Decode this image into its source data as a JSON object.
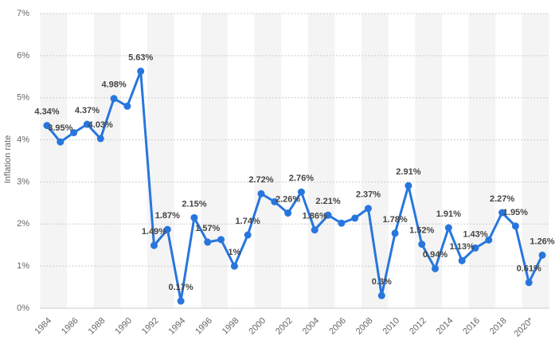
{
  "chart_data": {
    "type": "line",
    "y_label": "Inflation rate",
    "categories": [
      "1984",
      null,
      "1986",
      null,
      "1988",
      null,
      "1990",
      null,
      "1992",
      null,
      "1994",
      null,
      "1996",
      null,
      "1998",
      null,
      "2000",
      null,
      "2002",
      null,
      "2004",
      null,
      "2006",
      null,
      "2008",
      null,
      "2010",
      null,
      "2012",
      null,
      "2014",
      null,
      "2016",
      null,
      "2018",
      null,
      "2020*",
      null
    ],
    "series": [
      {
        "name": "Inflation rate",
        "color": "#2876dd",
        "values": [
          4.34,
          3.95,
          4.17,
          4.37,
          4.03,
          4.98,
          4.8,
          5.63,
          1.49,
          1.87,
          0.17,
          2.15,
          1.57,
          1.63,
          1,
          1.74,
          2.72,
          2.53,
          2.26,
          2.76,
          1.86,
          2.21,
          2.02,
          2.14,
          2.37,
          0.3,
          1.78,
          2.91,
          1.52,
          0.94,
          1.91,
          1.13,
          1.43,
          1.62,
          2.27,
          1.95,
          0.61,
          1.26
        ],
        "value_labels": [
          "4.34%",
          "3.95%",
          null,
          "4.37%",
          "4.03%",
          "4.98%",
          null,
          "5.63%",
          "1.49%",
          "1.87%",
          "0.17%",
          "2.15%",
          "1.57%",
          null,
          "1%",
          "1.74%",
          "2.72%",
          null,
          "2.26%",
          "2.76%",
          "1.86%",
          "2.21%",
          null,
          null,
          "2.37%",
          "0.3%",
          "1.78%",
          "2.91%",
          "1.52%",
          "0.94%",
          "1.91%",
          "1.13%",
          "1.43%",
          null,
          "2.27%",
          "1.95%",
          "0.61%",
          "1.26%"
        ]
      }
    ],
    "ylim": [
      0,
      7
    ],
    "yticks": [
      {
        "value": 0,
        "label": "0%"
      },
      {
        "value": 1,
        "label": "1%"
      },
      {
        "value": 2,
        "label": "2%"
      },
      {
        "value": 3,
        "label": "3%"
      },
      {
        "value": 4,
        "label": "4%"
      },
      {
        "value": 5,
        "label": "5%"
      },
      {
        "value": 6,
        "label": "6%"
      },
      {
        "value": 7,
        "label": "7%"
      }
    ],
    "grid": true
  }
}
